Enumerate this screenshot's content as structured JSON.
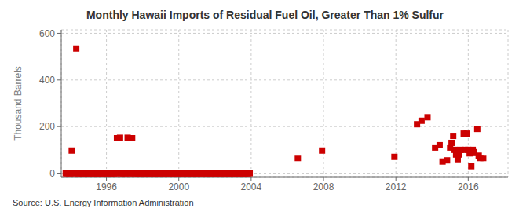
{
  "chart_data": {
    "type": "scatter",
    "title": "Monthly Hawaii Imports of Residual Fuel Oil, Greater Than 1% Sulfur",
    "y_label": "Thousand Barrels",
    "annotations": [
      "Source: U.S. Energy Information Administration"
    ],
    "color": "#cc0000",
    "marker": "square",
    "grid": true,
    "xlim": [
      1993.5,
      2018.2
    ],
    "ylim": [
      -15,
      615
    ],
    "xticks": [
      1996,
      2000,
      2004,
      2008,
      2012,
      2016
    ],
    "yticks": [
      0,
      200,
      400,
      600
    ],
    "x": [
      1994.08,
      1994.33,
      1996.58,
      1996.75,
      1997.17,
      1997.42,
      1993.75,
      1993.83,
      1993.92,
      1994.0,
      1994.17,
      1994.25,
      1994.42,
      1994.5,
      1994.58,
      1994.67,
      1994.75,
      1994.83,
      1994.92,
      1995.0,
      1995.08,
      1995.17,
      1995.25,
      1995.33,
      1995.42,
      1995.5,
      1995.58,
      1995.67,
      1995.75,
      1995.83,
      1995.92,
      1996.0,
      1996.08,
      1996.17,
      1996.25,
      1996.33,
      1996.42,
      1996.5,
      1996.67,
      1996.83,
      1996.92,
      1997.0,
      1997.08,
      1997.25,
      1997.33,
      1997.5,
      1997.58,
      1997.67,
      1997.75,
      1997.83,
      1997.92,
      1998.0,
      1998.08,
      1998.17,
      1998.25,
      1998.33,
      1998.42,
      1998.5,
      1998.58,
      1998.67,
      1998.75,
      1998.83,
      1998.92,
      1999.0,
      1999.08,
      1999.17,
      1999.25,
      1999.33,
      1999.42,
      1999.5,
      1999.58,
      1999.67,
      1999.75,
      1999.83,
      1999.92,
      2000.0,
      2000.08,
      2000.17,
      2000.25,
      2000.33,
      2000.42,
      2000.5,
      2000.58,
      2000.67,
      2000.75,
      2000.83,
      2000.92,
      2001.0,
      2001.08,
      2001.17,
      2001.25,
      2001.33,
      2001.42,
      2001.5,
      2001.58,
      2001.67,
      2001.75,
      2001.83,
      2001.92,
      2002.0,
      2002.08,
      2002.17,
      2002.25,
      2002.33,
      2002.42,
      2002.5,
      2002.58,
      2002.67,
      2002.75,
      2002.83,
      2002.92,
      2003.0,
      2003.08,
      2003.17,
      2003.25,
      2003.33,
      2003.42,
      2003.5,
      2003.58,
      2003.67,
      2003.75,
      2003.83,
      2003.92,
      2006.58,
      2007.92,
      2011.92,
      2013.17,
      2013.42,
      2013.75,
      2014.17,
      2014.42,
      2014.58,
      2014.83,
      2015.0,
      2015.08,
      2015.17,
      2015.25,
      2015.33,
      2015.42,
      2015.5,
      2015.58,
      2015.75,
      2015.83,
      2015.92,
      2016.0,
      2016.08,
      2016.17,
      2016.25,
      2016.33,
      2016.5,
      2016.58,
      2016.67,
      2016.83
    ],
    "values": [
      97,
      535,
      150,
      152,
      152,
      150,
      0,
      0,
      0,
      0,
      0,
      0,
      0,
      0,
      0,
      0,
      0,
      0,
      0,
      0,
      0,
      0,
      0,
      0,
      0,
      0,
      0,
      0,
      0,
      0,
      0,
      0,
      0,
      0,
      0,
      0,
      0,
      0,
      0,
      0,
      0,
      0,
      0,
      0,
      0,
      0,
      0,
      0,
      0,
      0,
      0,
      0,
      0,
      0,
      0,
      0,
      0,
      0,
      0,
      0,
      0,
      0,
      0,
      0,
      0,
      0,
      0,
      0,
      0,
      0,
      0,
      0,
      0,
      0,
      0,
      0,
      0,
      0,
      0,
      0,
      0,
      0,
      0,
      0,
      0,
      0,
      0,
      0,
      0,
      0,
      0,
      0,
      0,
      0,
      0,
      0,
      0,
      0,
      0,
      0,
      0,
      0,
      0,
      0,
      0,
      0,
      0,
      0,
      0,
      0,
      0,
      0,
      0,
      0,
      0,
      0,
      0,
      0,
      0,
      0,
      0,
      0,
      0,
      65,
      97,
      70,
      210,
      225,
      240,
      110,
      120,
      50,
      55,
      110,
      130,
      160,
      100,
      80,
      60,
      80,
      100,
      170,
      100,
      170,
      100,
      85,
      30,
      100,
      90,
      190,
      75,
      65,
      65
    ]
  }
}
